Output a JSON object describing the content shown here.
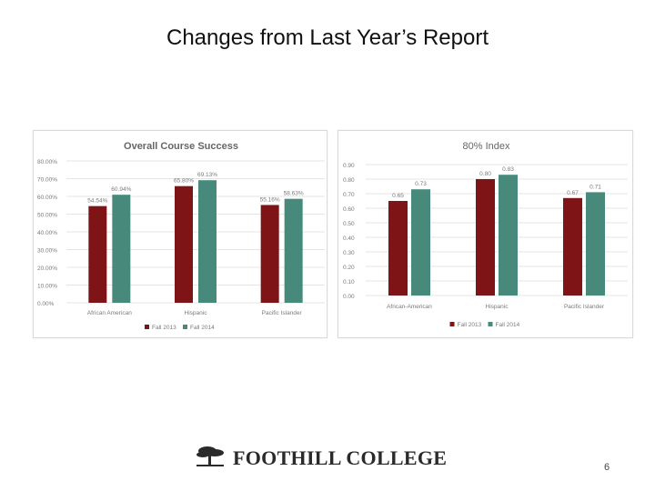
{
  "slide": {
    "title": "Changes from Last Year’s Report",
    "page_number": "6"
  },
  "footer": {
    "logo_text": "FOOTHILL COLLEGE",
    "logo_icon": "tree-icon"
  },
  "colors": {
    "fall_2013": "#7f1416",
    "fall_2014": "#478a7c",
    "gridline": "#e4e4e4",
    "axis_text": "#7a7a7a",
    "title_text": "#666666"
  },
  "chart_data": [
    {
      "type": "bar",
      "title": "Overall Course Success",
      "categories": [
        "African American",
        "Hispanic",
        "Pacific Islander"
      ],
      "series": [
        {
          "name": "Fall 2013",
          "values": [
            54.54,
            65.8,
            55.16
          ],
          "labels": [
            "54.54%",
            "65.80%",
            "55.16%"
          ]
        },
        {
          "name": "Fall 2014",
          "values": [
            60.94,
            69.13,
            58.63
          ],
          "labels": [
            "60.94%",
            "69.13%",
            "58.63%"
          ]
        }
      ],
      "ylim": [
        0,
        80
      ],
      "yticks": [
        0,
        10,
        20,
        30,
        40,
        50,
        60,
        70,
        80
      ],
      "ytick_labels": [
        "0.00%",
        "10.00%",
        "20.00%",
        "30.00%",
        "40.00%",
        "50.00%",
        "60.00%",
        "70.00%",
        "80.00%"
      ],
      "grid": true,
      "legend": "bottom"
    },
    {
      "type": "bar",
      "title": "80% Index",
      "categories": [
        "African-American",
        "Hispanic",
        "Pacific Islander"
      ],
      "series": [
        {
          "name": "Fall 2013",
          "values": [
            0.65,
            0.8,
            0.67
          ],
          "labels": [
            "0.65",
            "0.80",
            "0.67"
          ]
        },
        {
          "name": "Fall 2014",
          "values": [
            0.73,
            0.83,
            0.71
          ],
          "labels": [
            "0.73",
            "0.83",
            "0.71"
          ]
        }
      ],
      "ylim": [
        0,
        0.9
      ],
      "yticks": [
        0,
        0.1,
        0.2,
        0.3,
        0.4,
        0.5,
        0.6,
        0.7,
        0.8,
        0.9
      ],
      "ytick_labels": [
        "0.00",
        "0.10",
        "0.20",
        "0.30",
        "0.40",
        "0.50",
        "0.60",
        "0.70",
        "0.80",
        "0.90"
      ],
      "grid": true,
      "legend": "bottom"
    }
  ]
}
